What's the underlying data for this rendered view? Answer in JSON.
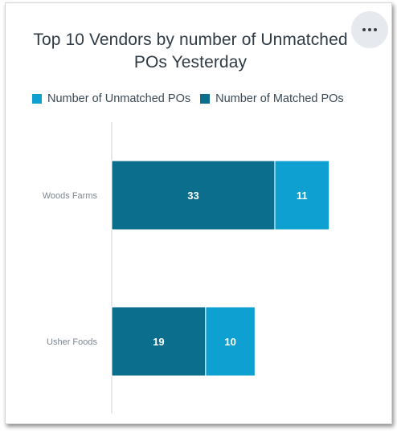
{
  "menu": {
    "icon": "more-horizontal-icon"
  },
  "chart_data": {
    "type": "bar",
    "orientation": "horizontal",
    "stacked": true,
    "title": "Top 10 Vendors by number of Unmatched POs Yesterday",
    "categories": [
      "Woods Farms",
      "Usher Foods"
    ],
    "series": [
      {
        "name": "Number of Matched POs",
        "values": [
          33,
          19
        ],
        "color": "#0a6e8c"
      },
      {
        "name": "Number of Unmatched POs",
        "values": [
          11,
          10
        ],
        "color": "#0fa0d2"
      }
    ],
    "legend_order": [
      "Number of Unmatched POs",
      "Number of Matched POs"
    ],
    "legend": "top",
    "xlim": [
      0,
      44
    ],
    "grid": false
  }
}
